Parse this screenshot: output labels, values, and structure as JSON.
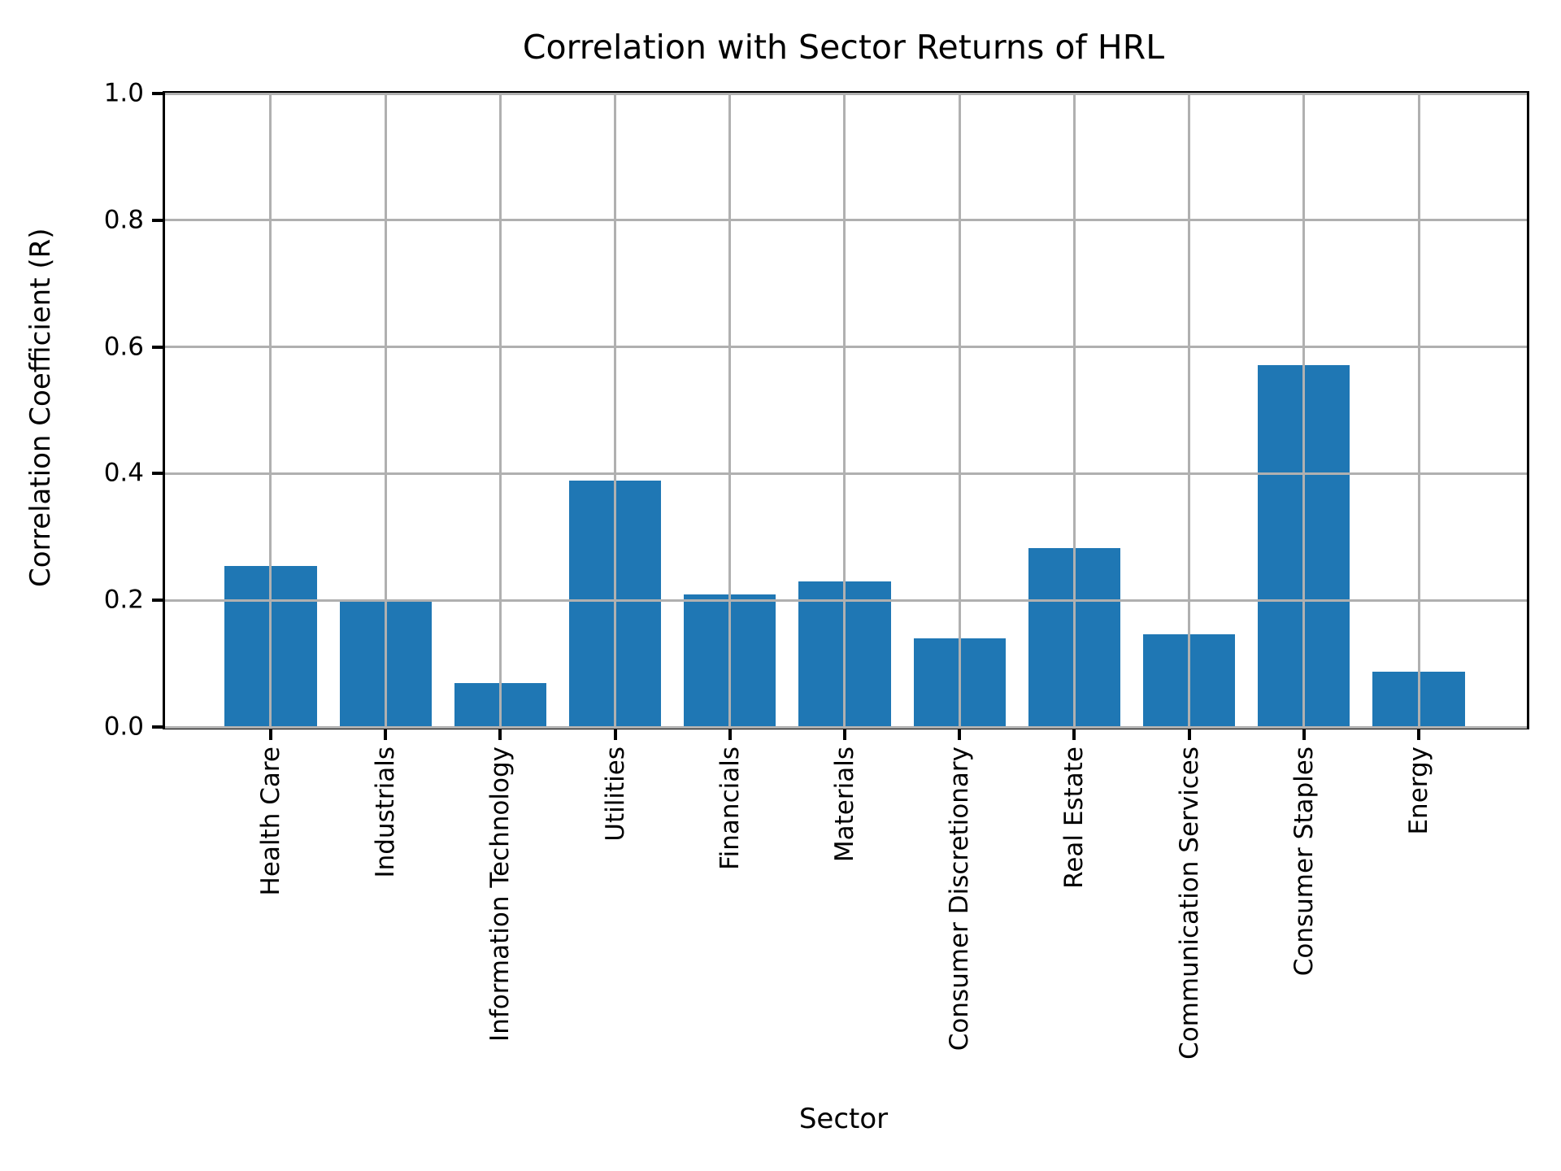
{
  "chart_data": {
    "type": "bar",
    "title": "Correlation with Sector Returns of HRL",
    "xlabel": "Sector",
    "ylabel": "Correlation Coefficient (R)",
    "categories": [
      "Health Care",
      "Industrials",
      "Information Technology",
      "Utilities",
      "Financials",
      "Materials",
      "Consumer Discretionary",
      "Real Estate",
      "Communication Services",
      "Consumer Staples",
      "Energy"
    ],
    "values": [
      0.254,
      0.198,
      0.069,
      0.389,
      0.209,
      0.23,
      0.14,
      0.282,
      0.146,
      0.571,
      0.087
    ],
    "ylim": [
      0.0,
      1.0
    ],
    "yticks": [
      0.0,
      0.2,
      0.4,
      0.6,
      0.8,
      1.0
    ],
    "ytick_labels": [
      "0.0",
      "0.2",
      "0.4",
      "0.6",
      "0.8",
      "1.0"
    ],
    "x_tick_rotation_deg": 90,
    "grid": true,
    "grid_over_bars": true,
    "legend": "none",
    "bar_color": "#1f77b4",
    "grid_color": "#b0b0b0",
    "spine_color": "#000000",
    "background_color": "#ffffff"
  }
}
